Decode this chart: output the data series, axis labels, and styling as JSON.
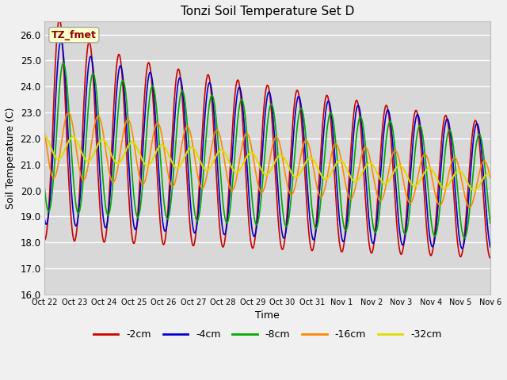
{
  "title": "Tonzi Soil Temperature Set D",
  "xlabel": "Time",
  "ylabel": "Soil Temperature (C)",
  "ylim": [
    16.0,
    26.5
  ],
  "yticks": [
    16.0,
    17.0,
    18.0,
    19.0,
    20.0,
    21.0,
    22.0,
    23.0,
    24.0,
    25.0,
    26.0
  ],
  "x_tick_labels": [
    "Oct 22",
    "Oct 23",
    "Oct 24",
    "Oct 25",
    "Oct 26",
    "Oct 27",
    "Oct 28",
    "Oct 29",
    "Oct 30",
    "Oct 31",
    "Nov 1",
    "Nov 2",
    "Nov 3",
    "Nov 4",
    "Nov 5",
    "Nov 6"
  ],
  "series_colors": [
    "#cc0000",
    "#0000cc",
    "#00aa00",
    "#ff8800",
    "#dddd00"
  ],
  "series_labels": [
    "-2cm",
    "-4cm",
    "-8cm",
    "-16cm",
    "-32cm"
  ],
  "legend_label": "TZ_fmet",
  "plot_bg_color": "#d8d8d8",
  "fig_bg_color": "#f0f0f0",
  "grid_color": "#ffffff",
  "n_days": 15,
  "points_per_day": 96
}
